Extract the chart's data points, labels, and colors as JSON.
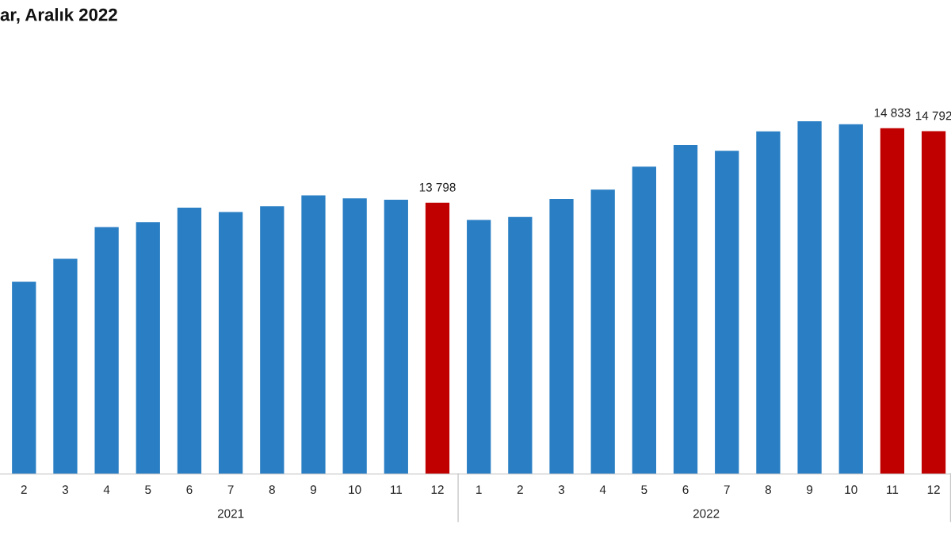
{
  "chart_data": {
    "type": "bar",
    "title": "ar, Aralık 2022",
    "ylim": [
      10030,
      14930
    ],
    "categories": [
      "2",
      "3",
      "4",
      "5",
      "6",
      "7",
      "8",
      "9",
      "10",
      "11",
      "12",
      "1",
      "2",
      "3",
      "4",
      "5",
      "6",
      "7",
      "8",
      "9",
      "10",
      "11",
      "12"
    ],
    "values": [
      12700,
      13020,
      13460,
      13530,
      13730,
      13670,
      13750,
      13900,
      13860,
      13840,
      13798,
      13560,
      13600,
      13850,
      13980,
      14300,
      14600,
      14520,
      14790,
      14930,
      14890,
      14833,
      14792
    ],
    "colors": [
      "#2a7fc4",
      "#2a7fc4",
      "#2a7fc4",
      "#2a7fc4",
      "#2a7fc4",
      "#2a7fc4",
      "#2a7fc4",
      "#2a7fc4",
      "#2a7fc4",
      "#2a7fc4",
      "#c00000",
      "#2a7fc4",
      "#2a7fc4",
      "#2a7fc4",
      "#2a7fc4",
      "#2a7fc4",
      "#2a7fc4",
      "#2a7fc4",
      "#2a7fc4",
      "#2a7fc4",
      "#2a7fc4",
      "#c00000",
      "#c00000"
    ],
    "value_labels": [
      null,
      null,
      null,
      null,
      null,
      null,
      null,
      null,
      null,
      null,
      "13 798",
      null,
      null,
      null,
      null,
      null,
      null,
      null,
      null,
      null,
      null,
      "14 833",
      "14 792"
    ],
    "annotations": [
      "2021",
      "2022"
    ],
    "grid": false,
    "legend": false
  }
}
